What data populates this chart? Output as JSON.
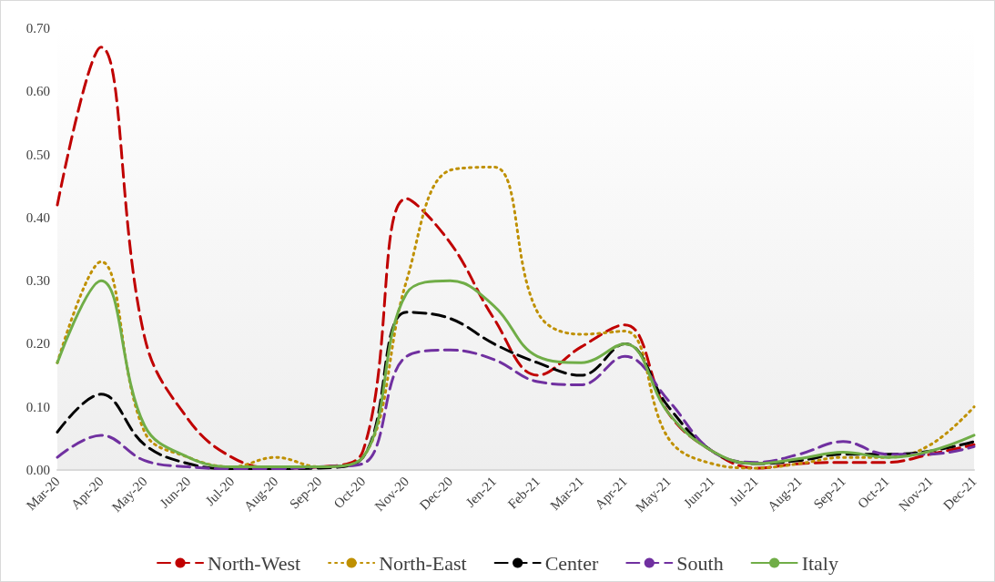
{
  "chart_data": {
    "type": "line",
    "categories": [
      "Mar-20",
      "Apr-20",
      "May-20",
      "Jun-20",
      "Jul-20",
      "Aug-20",
      "Sep-20",
      "Oct-20",
      "Nov-20",
      "Dec-20",
      "Jen-21",
      "Feb-21",
      "Mar-21",
      "Apr-21",
      "May-21",
      "Jun-21",
      "Jul-21",
      "Aug-21",
      "Sep-21",
      "Oct-21",
      "Nov-21",
      "Dec-21"
    ],
    "ylim": [
      0,
      0.7
    ],
    "yticks": [
      {
        "value": 0,
        "label": "0.00"
      },
      {
        "value": 0.1,
        "label": "0.10"
      },
      {
        "value": 0.2,
        "label": "0.20"
      },
      {
        "value": 0.3,
        "label": "0.30"
      },
      {
        "value": 0.4,
        "label": "0.40"
      },
      {
        "value": 0.5,
        "label": "0.50"
      },
      {
        "value": 0.6,
        "label": "0.60"
      },
      {
        "value": 0.7,
        "label": "0.70"
      }
    ],
    "grid": false,
    "legend": "bottom",
    "marker": "none",
    "series": [
      {
        "name": "North-West",
        "color": "#c00000",
        "line_style": "dashed",
        "values": [
          0.42,
          0.67,
          0.21,
          0.08,
          0.02,
          0.003,
          0.005,
          0.03,
          0.43,
          0.36,
          0.24,
          0.15,
          0.195,
          0.23,
          0.09,
          0.03,
          0.003,
          0.01,
          0.012,
          0.012,
          0.025,
          0.04
        ]
      },
      {
        "name": "North-East",
        "color": "#bf9000",
        "line_style": "dotted",
        "values": [
          0.17,
          0.33,
          0.06,
          0.02,
          0.005,
          0.02,
          0.005,
          0.02,
          0.3,
          0.475,
          0.48,
          0.25,
          0.215,
          0.22,
          0.05,
          0.01,
          0.003,
          0.01,
          0.02,
          0.02,
          0.04,
          0.1
        ]
      },
      {
        "name": "Center",
        "color": "#000000",
        "line_style": "dashed",
        "values": [
          0.06,
          0.12,
          0.04,
          0.01,
          0.002,
          0.002,
          0.003,
          0.02,
          0.25,
          0.24,
          0.2,
          0.17,
          0.15,
          0.2,
          0.1,
          0.03,
          0.01,
          0.015,
          0.025,
          0.025,
          0.03,
          0.045
        ]
      },
      {
        "name": "South",
        "color": "#7030a0",
        "line_style": "dashed",
        "values": [
          0.02,
          0.055,
          0.015,
          0.005,
          0.002,
          0.002,
          0.005,
          0.01,
          0.18,
          0.19,
          0.175,
          0.14,
          0.135,
          0.18,
          0.11,
          0.03,
          0.012,
          0.025,
          0.045,
          0.025,
          0.025,
          0.037
        ]
      },
      {
        "name": "Italy",
        "color": "#70ad47",
        "line_style": "solid",
        "values": [
          0.17,
          0.3,
          0.07,
          0.02,
          0.005,
          0.005,
          0.005,
          0.02,
          0.28,
          0.3,
          0.26,
          0.18,
          0.17,
          0.2,
          0.09,
          0.03,
          0.01,
          0.018,
          0.028,
          0.02,
          0.03,
          0.055
        ]
      }
    ]
  }
}
